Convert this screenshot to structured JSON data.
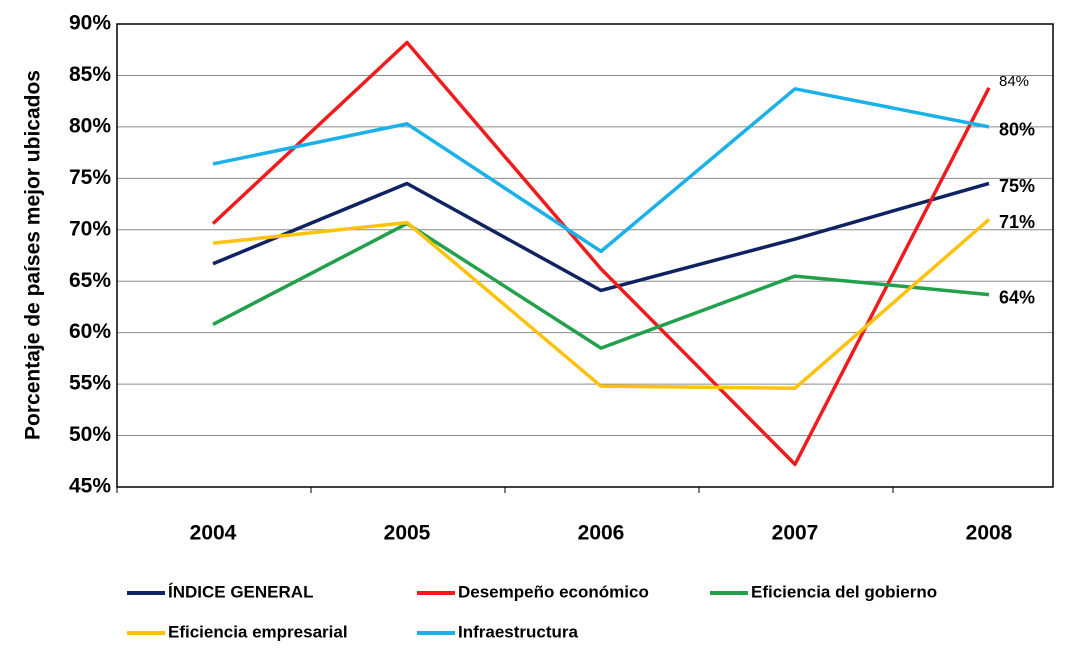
{
  "chart_data": {
    "type": "line",
    "y_axis_label": "Porcentaje de países mejor ubicados",
    "categories": [
      "2004",
      "2005",
      "2006",
      "2007",
      "2008"
    ],
    "ylim": [
      45,
      90
    ],
    "yticks": [
      {
        "value": 45,
        "label": "45%"
      },
      {
        "value": 50,
        "label": "50%"
      },
      {
        "value": 55,
        "label": "55%"
      },
      {
        "value": 60,
        "label": "60%"
      },
      {
        "value": 65,
        "label": "65%"
      },
      {
        "value": 70,
        "label": "70%"
      },
      {
        "value": 75,
        "label": "75%"
      },
      {
        "value": 80,
        "label": "80%"
      },
      {
        "value": 85,
        "label": "85%"
      },
      {
        "value": 90,
        "label": "90%"
      }
    ],
    "grid": true,
    "legend": "bottom",
    "series": [
      {
        "name": "ÍNDICE GENERAL",
        "color": "#0f2362",
        "values": [
          66.7,
          74.5,
          64.1,
          69.1,
          74.5
        ],
        "value_labels": [
          null,
          null,
          null,
          null,
          "75%"
        ]
      },
      {
        "name": "Desempeño económico",
        "color": "#ee1c1c",
        "values": [
          70.6,
          88.2,
          66.2,
          47.2,
          83.8
        ],
        "value_labels": [
          null,
          null,
          null,
          null,
          "84%"
        ]
      },
      {
        "name": "Eficiencia del gobierno",
        "color": "#22a04b",
        "values": [
          60.8,
          70.6,
          58.5,
          65.5,
          63.7
        ],
        "value_labels": [
          null,
          null,
          null,
          null,
          "64%"
        ]
      },
      {
        "name": "Eficiencia empresarial",
        "color": "#fcc20c",
        "values": [
          68.7,
          70.7,
          54.8,
          54.6,
          71.0
        ],
        "value_labels": [
          null,
          null,
          null,
          null,
          "71%"
        ]
      },
      {
        "name": "Infraestructura",
        "color": "#1ab0e8",
        "values": [
          76.4,
          80.3,
          67.9,
          83.7,
          80.0
        ],
        "value_labels": [
          null,
          null,
          null,
          null,
          "80%"
        ]
      }
    ]
  }
}
